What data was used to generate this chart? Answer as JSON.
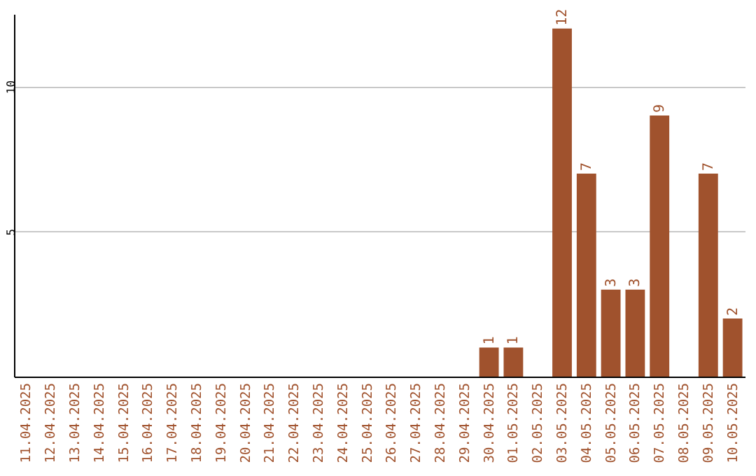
{
  "chart_data": {
    "type": "bar",
    "categories": [
      "11.04.2025",
      "12.04.2025",
      "13.04.2025",
      "14.04.2025",
      "15.04.2025",
      "16.04.2025",
      "17.04.2025",
      "18.04.2025",
      "19.04.2025",
      "20.04.2025",
      "21.04.2025",
      "22.04.2025",
      "23.04.2025",
      "24.04.2025",
      "25.04.2025",
      "26.04.2025",
      "27.04.2025",
      "28.04.2025",
      "29.04.2025",
      "30.04.2025",
      "01.05.2025",
      "02.05.2025",
      "03.05.2025",
      "04.05.2025",
      "05.05.2025",
      "06.05.2025",
      "07.05.2025",
      "08.05.2025",
      "09.05.2025",
      "10.05.2025"
    ],
    "values": [
      0,
      0,
      0,
      0,
      0,
      0,
      0,
      0,
      0,
      0,
      0,
      0,
      0,
      0,
      0,
      0,
      0,
      0,
      0,
      1,
      1,
      0,
      12,
      7,
      3,
      3,
      9,
      0,
      7,
      2
    ],
    "value_labels": [
      null,
      null,
      null,
      null,
      null,
      null,
      null,
      null,
      null,
      null,
      null,
      null,
      null,
      null,
      null,
      null,
      null,
      null,
      null,
      "1",
      "1",
      null,
      "12",
      "7",
      "3",
      "3",
      "9",
      null,
      "7",
      "2"
    ],
    "color": "#a0522d",
    "ylim": [
      0,
      12.5
    ],
    "yticks": [
      5,
      10
    ],
    "grid": "y"
  }
}
